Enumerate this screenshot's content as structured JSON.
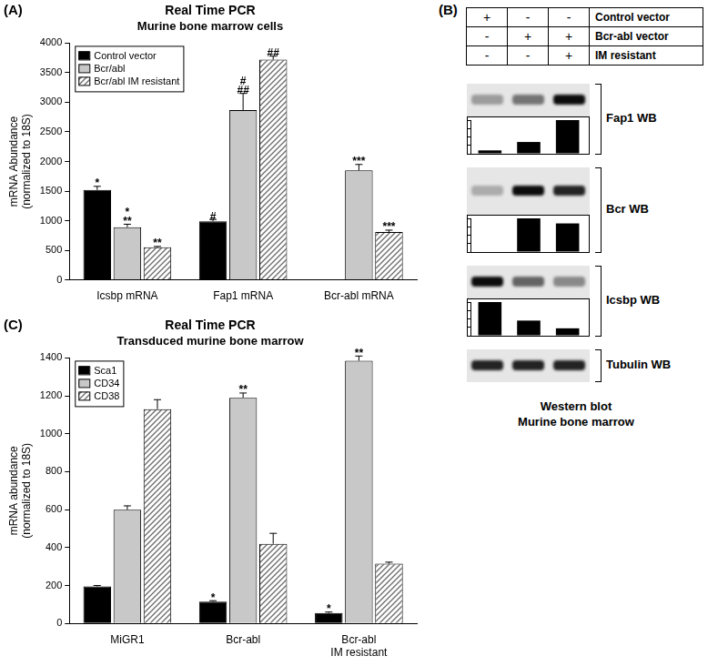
{
  "chart_data": [
    {
      "type": "bar",
      "panel": "(A)",
      "title": "Real Time PCR",
      "subtitle": "Murine bone marrow cells",
      "y_label": [
        "mRNA Abundance",
        "(normalized to 18S)"
      ],
      "categories": [
        "Icsbp mRNA",
        "Fap1 mRNA",
        "Bcr-abl mRNA"
      ],
      "series": [
        {
          "name": "Control vector",
          "color": "#000000",
          "values": [
            1520,
            990,
            null
          ],
          "errors": [
            60,
            30,
            null
          ],
          "marks": [
            [
              "*"
            ],
            [
              "#"
            ],
            null
          ]
        },
        {
          "name": "Bcr/abl",
          "color": "#c8c8c8",
          "values": [
            890,
            2870,
            1850
          ],
          "errors": [
            50,
            280,
            100
          ],
          "marks": [
            [
              "*",
              "**"
            ],
            [
              "#",
              "##"
            ],
            [
              "***"
            ]
          ]
        },
        {
          "name": "Bcr/abl IM resistant",
          "color": "#707070",
          "marker": "hatch",
          "values": [
            550,
            3720,
            810
          ],
          "errors": [
            15,
            60,
            30
          ],
          "marks": [
            [
              "**"
            ],
            [
              "##"
            ],
            [
              "***"
            ]
          ]
        }
      ],
      "ylim": [
        0,
        4000
      ],
      "yticks": [
        0,
        500,
        1000,
        1500,
        2000,
        2500,
        3000,
        3500,
        4000
      ],
      "grid": false,
      "legend": "upper left"
    },
    {
      "type": "bar",
      "panel": "(C)",
      "title": "Real Time PCR",
      "subtitle": "Transduced murine bone marrow",
      "y_label": [
        "mRNA abundance",
        "(normalized to 18S)"
      ],
      "categories": [
        "MiGR1",
        "Bcr-abl",
        "Bcr-abl IM resistant"
      ],
      "series": [
        {
          "name": "Sca1",
          "color": "#000000",
          "values": [
            195,
            115,
            55
          ],
          "errors": [
            5,
            5,
            5
          ],
          "marks": [
            null,
            [
              "*"
            ],
            [
              "*"
            ]
          ]
        },
        {
          "name": "CD34",
          "color": "#c8c8c8",
          "values": [
            600,
            1190,
            1385
          ],
          "errors": [
            20,
            25,
            25
          ],
          "marks": [
            null,
            [
              "**"
            ],
            [
              "**"
            ]
          ]
        },
        {
          "name": "CD38",
          "color": "#707070",
          "marker": "hatch",
          "values": [
            1130,
            420,
            315
          ],
          "errors": [
            50,
            55,
            8
          ]
        }
      ],
      "ylim": [
        0,
        1400
      ],
      "yticks": [
        0,
        200,
        400,
        600,
        800,
        1000,
        1200,
        1400
      ],
      "grid": false,
      "legend": "upper left"
    }
  ],
  "western_blot": {
    "panel": "(B)",
    "conditions": [
      {
        "label": "Control vector",
        "lanes": [
          "+",
          "-",
          "-"
        ]
      },
      {
        "label": "Bcr-abl vector",
        "lanes": [
          "-",
          "+",
          "+"
        ]
      },
      {
        "label": "IM resistant",
        "lanes": [
          "-",
          "-",
          "+"
        ]
      }
    ],
    "blots": [
      {
        "label": "Fap1 WB",
        "inset": {
          "type": "bar",
          "values": [
            0.1,
            0.35,
            1.0
          ],
          "ylim": [
            0,
            1
          ],
          "yticks": [
            0,
            0.25,
            0.5,
            0.75,
            1
          ],
          "tick_labels": false,
          "color": "#000000"
        }
      },
      {
        "label": "Bcr WB",
        "inset": {
          "type": "bar",
          "values": [
            0,
            1.0,
            0.85
          ],
          "ylim": [
            0,
            1
          ],
          "yticks": [
            0,
            0.25,
            0.5,
            0.75,
            1
          ],
          "tick_labels": false,
          "color": "#000000"
        }
      },
      {
        "label": "Icsbp WB",
        "inset": {
          "type": "bar",
          "values": [
            1.0,
            0.45,
            0.22
          ],
          "ylim": [
            0,
            1
          ],
          "yticks": [
            0,
            0.25,
            0.5,
            0.75,
            1
          ],
          "tick_labels": false,
          "color": "#000000"
        }
      },
      {
        "label": "Tubulin WB"
      }
    ],
    "caption": [
      "Western blot",
      "Murine bone marrow"
    ]
  }
}
